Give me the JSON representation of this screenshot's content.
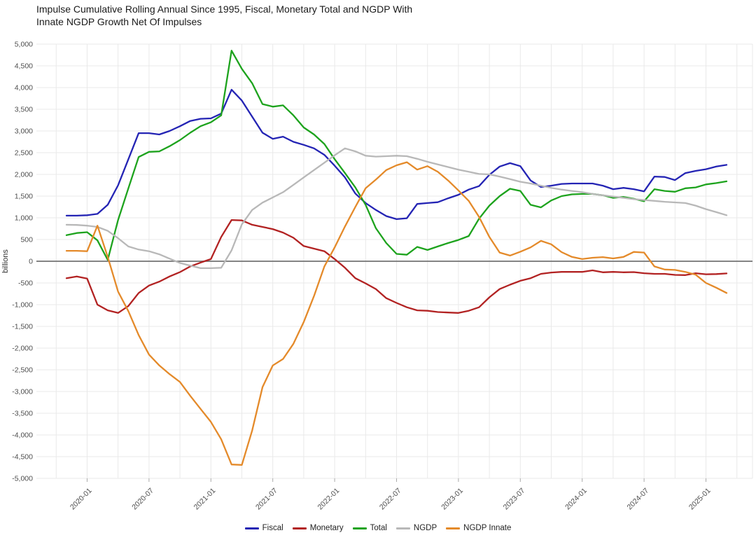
{
  "title": {
    "line1": "Impulse Cumulative Rolling Annual Since 1995, Fiscal, Monetary Total and NGDP With",
    "line2": "Innate NGDP Growth Net Of Impulses"
  },
  "chart_data": {
    "type": "line",
    "title": "Impulse Cumulative Rolling Annual Since 1995, Fiscal, Monetary Total and NGDP With Innate NGDP Growth Net Of Impulses",
    "ylabel": "billions",
    "ylim": [
      -5000,
      5000
    ],
    "ytick_step": 500,
    "grid": true,
    "legend_position": "bottom",
    "zero_line_color": "#737373",
    "grid_color": "#e9e9e9",
    "tick_text_color": "#4d4d4d",
    "x": [
      "2019-11",
      "2019-12",
      "2020-01",
      "2020-02",
      "2020-03",
      "2020-04",
      "2020-05",
      "2020-06",
      "2020-07",
      "2020-08",
      "2020-09",
      "2020-10",
      "2020-11",
      "2020-12",
      "2021-01",
      "2021-02",
      "2021-03",
      "2021-04",
      "2021-05",
      "2021-06",
      "2021-07",
      "2021-08",
      "2021-09",
      "2021-10",
      "2021-11",
      "2021-12",
      "2022-01",
      "2022-02",
      "2022-03",
      "2022-04",
      "2022-05",
      "2022-06",
      "2022-07",
      "2022-08",
      "2022-09",
      "2022-10",
      "2022-11",
      "2022-12",
      "2023-01",
      "2023-02",
      "2023-03",
      "2023-04",
      "2023-05",
      "2023-06",
      "2023-07",
      "2023-08",
      "2023-09",
      "2023-10",
      "2023-11",
      "2023-12",
      "2024-01",
      "2024-02",
      "2024-03",
      "2024-04",
      "2024-05",
      "2024-06",
      "2024-07",
      "2024-08",
      "2024-09",
      "2024-10",
      "2024-11",
      "2024-12",
      "2025-01",
      "2025-02",
      "2025-03"
    ],
    "x_tick_months": [
      2,
      8,
      14,
      20,
      26,
      32,
      38,
      44,
      50,
      56,
      62
    ],
    "x_tick_labels": [
      "2020-01",
      "2020-07",
      "2021-01",
      "2021-07",
      "2022-01",
      "2022-07",
      "2023-01",
      "2023-07",
      "2024-01",
      "2024-07",
      "2025-01"
    ],
    "series": [
      {
        "name": "Fiscal",
        "color": "#2424b4",
        "values": [
          1050,
          1050,
          1060,
          1090,
          1300,
          1750,
          2350,
          2950,
          2950,
          2920,
          3000,
          3110,
          3230,
          3280,
          3290,
          3400,
          3950,
          3700,
          3330,
          2960,
          2820,
          2870,
          2750,
          2680,
          2600,
          2450,
          2200,
          1930,
          1560,
          1340,
          1180,
          1040,
          970,
          990,
          1320,
          1340,
          1360,
          1450,
          1530,
          1650,
          1730,
          1990,
          2180,
          2260,
          2190,
          1860,
          1710,
          1740,
          1780,
          1790,
          1790,
          1790,
          1740,
          1660,
          1690,
          1660,
          1610,
          1950,
          1940,
          1870,
          2030,
          2080,
          2120,
          2180,
          2220
        ]
      },
      {
        "name": "Monetary",
        "color": "#b22222",
        "values": [
          -390,
          -350,
          -400,
          -1000,
          -1130,
          -1190,
          -1030,
          -730,
          -560,
          -470,
          -350,
          -250,
          -120,
          -30,
          50,
          560,
          950,
          940,
          840,
          790,
          740,
          660,
          540,
          350,
          290,
          230,
          50,
          -150,
          -390,
          -510,
          -640,
          -850,
          -960,
          -1060,
          -1130,
          -1140,
          -1170,
          -1180,
          -1190,
          -1140,
          -1060,
          -830,
          -640,
          -540,
          -450,
          -390,
          -290,
          -260,
          -245,
          -245,
          -245,
          -210,
          -255,
          -245,
          -255,
          -250,
          -275,
          -290,
          -290,
          -315,
          -320,
          -275,
          -300,
          -295,
          -280
        ]
      },
      {
        "name": "Total",
        "color": "#1da31d",
        "values": [
          600,
          650,
          670,
          480,
          30,
          950,
          1680,
          2400,
          2520,
          2530,
          2650,
          2790,
          2960,
          3110,
          3200,
          3360,
          4850,
          4430,
          4100,
          3620,
          3560,
          3590,
          3360,
          3080,
          2920,
          2700,
          2350,
          2030,
          1700,
          1300,
          760,
          420,
          170,
          150,
          330,
          260,
          340,
          420,
          490,
          580,
          980,
          1280,
          1500,
          1670,
          1620,
          1300,
          1240,
          1400,
          1500,
          1540,
          1550,
          1550,
          1520,
          1460,
          1480,
          1440,
          1380,
          1660,
          1620,
          1600,
          1680,
          1700,
          1770,
          1800,
          1840
        ]
      },
      {
        "name": "NGDP",
        "color": "#b8b8b8",
        "values": [
          840,
          835,
          820,
          790,
          700,
          530,
          340,
          270,
          230,
          160,
          60,
          -40,
          -100,
          -160,
          -160,
          -150,
          250,
          850,
          1180,
          1350,
          1470,
          1590,
          1760,
          1930,
          2100,
          2270,
          2440,
          2600,
          2530,
          2430,
          2410,
          2420,
          2430,
          2420,
          2360,
          2290,
          2230,
          2170,
          2110,
          2060,
          2010,
          2000,
          1950,
          1890,
          1830,
          1790,
          1740,
          1690,
          1650,
          1620,
          1590,
          1550,
          1520,
          1490,
          1460,
          1430,
          1410,
          1390,
          1370,
          1355,
          1340,
          1280,
          1200,
          1130,
          1060
        ]
      },
      {
        "name": "NGDP Innate",
        "color": "#e48a2a",
        "values": [
          240,
          240,
          230,
          820,
          100,
          -700,
          -1150,
          -1700,
          -2150,
          -2400,
          -2600,
          -2780,
          -3100,
          -3400,
          -3700,
          -4100,
          -4680,
          -4690,
          -3900,
          -2900,
          -2400,
          -2250,
          -1900,
          -1400,
          -800,
          -120,
          320,
          800,
          1250,
          1680,
          1880,
          2100,
          2210,
          2280,
          2110,
          2190,
          2060,
          1860,
          1630,
          1390,
          1020,
          560,
          200,
          130,
          220,
          320,
          470,
          390,
          210,
          100,
          50,
          80,
          95,
          65,
          100,
          215,
          200,
          -120,
          -190,
          -200,
          -245,
          -310,
          -500,
          -610,
          -730
        ]
      }
    ]
  }
}
